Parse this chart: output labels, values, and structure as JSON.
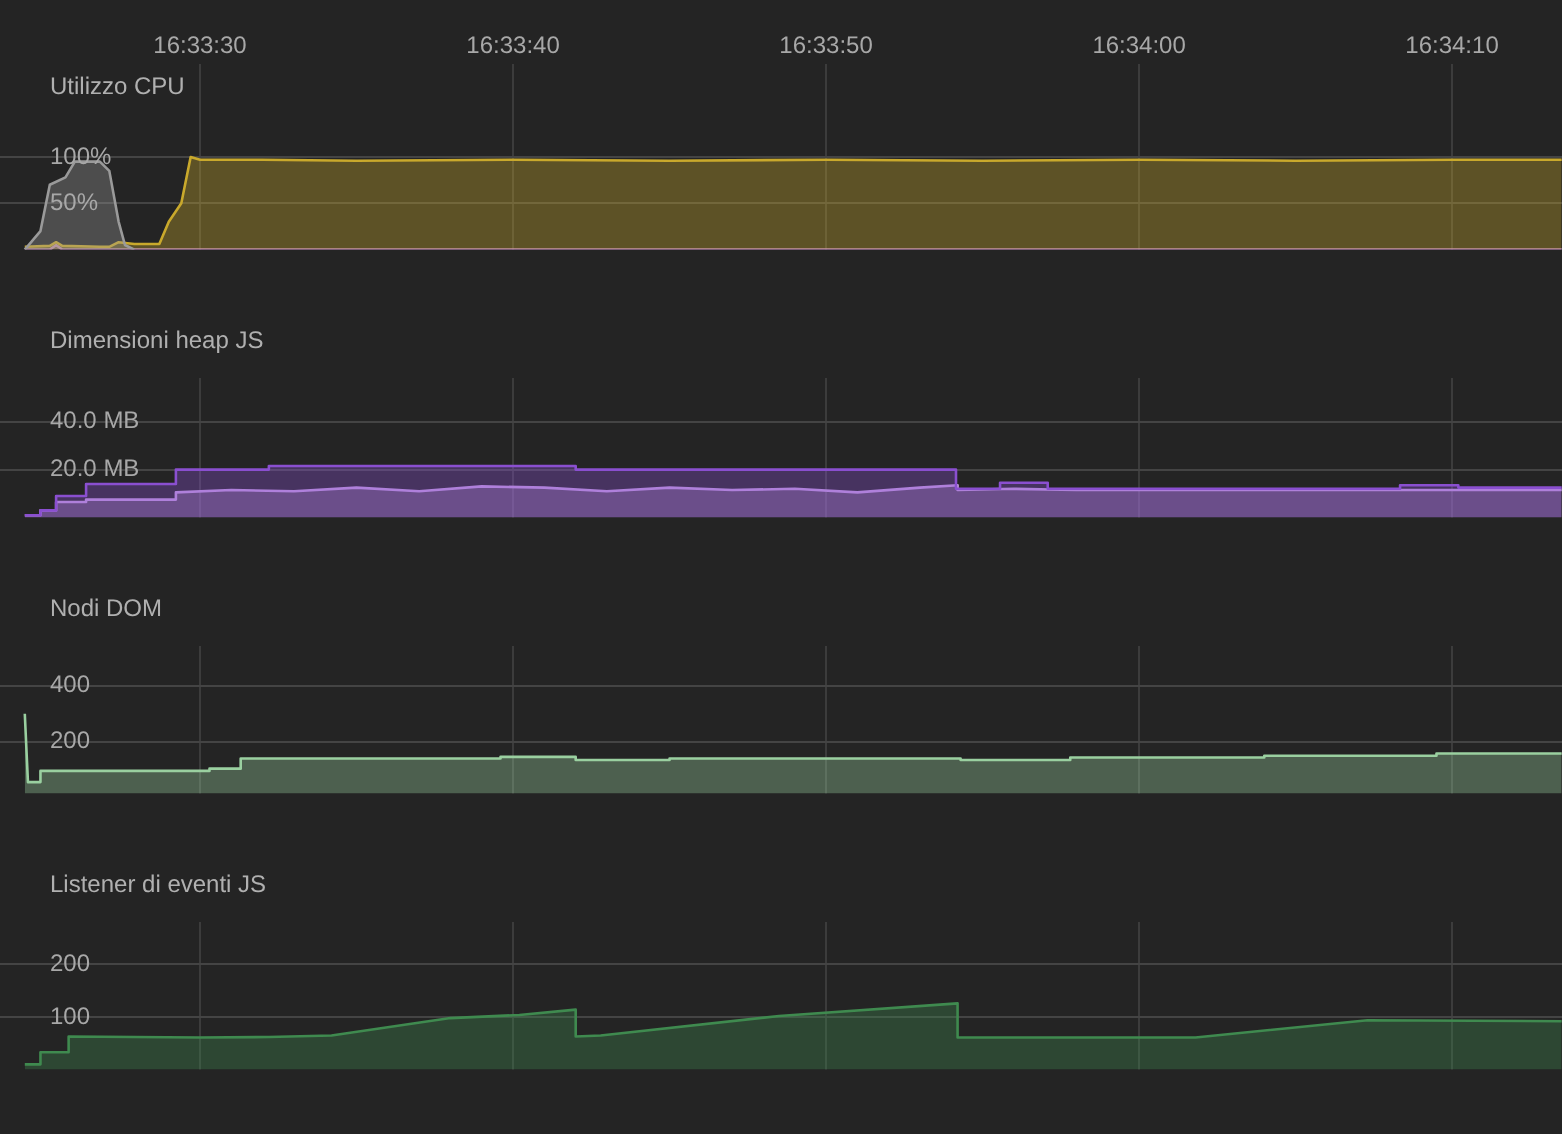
{
  "chart_data": [
    {
      "type": "area",
      "title": "Utilizzo CPU",
      "xlim": [
        16.556558,
        16.57042
      ],
      "xticks": [
        {
          "value": 16.558333,
          "label": "16:33:30"
        },
        {
          "value": 16.561111,
          "label": "16:33:40"
        },
        {
          "value": 16.563889,
          "label": "16:33:50"
        },
        {
          "value": 16.566667,
          "label": "16:34:00"
        },
        {
          "value": 16.569444,
          "label": "16:34:10"
        }
      ],
      "ylim": [
        0,
        200
      ],
      "yticks": [
        {
          "value": 50,
          "label": "50%"
        },
        {
          "value": 100,
          "label": "100%"
        }
      ],
      "grid": true,
      "series": [
        {
          "color": "#9a9a9a",
          "x": [
            16.556778,
            16.556917,
            16.557,
            16.557139,
            16.557222,
            16.557444,
            16.557528,
            16.557611,
            16.557667,
            16.55775
          ],
          "values": [
            0,
            20,
            70,
            78,
            95,
            95,
            85,
            30,
            5,
            0
          ]
        },
        {
          "color": "#c9a92c",
          "x": [
            16.556778,
            16.557,
            16.557056,
            16.557111,
            16.557444,
            16.557528,
            16.557611,
            16.55775,
            16.557972,
            16.558056,
            16.558167,
            16.55825,
            16.558333,
            16.558889,
            16.559722,
            16.561111,
            16.5625,
            16.563889,
            16.565278,
            16.566667,
            16.568056,
            16.569444,
            16.570417
          ],
          "values": [
            3,
            4,
            8,
            4,
            3,
            3,
            8,
            6,
            6,
            30,
            50,
            100,
            97,
            97,
            96,
            97,
            96,
            97,
            96,
            97,
            96,
            97,
            97
          ]
        },
        {
          "color": "#c58ae0",
          "x": [
            16.556778,
            16.557,
            16.557056,
            16.557111,
            16.570417
          ],
          "values": [
            0,
            0,
            5,
            0,
            0
          ]
        }
      ]
    },
    {
      "type": "area",
      "title": "Dimensioni heap JS",
      "xlim": [
        16.556558,
        16.57042
      ],
      "xticks": [
        16.558333,
        16.561111,
        16.563889,
        16.566667,
        16.569444
      ],
      "ylim": [
        0,
        58
      ],
      "yticks": [
        {
          "value": 20,
          "label": "20.0 MB"
        },
        {
          "value": 40,
          "label": "40.0 MB"
        }
      ],
      "grid": true,
      "tick_labels": "y",
      "series": [
        {
          "color": "#8a4fd0",
          "x": [
            16.556778,
            16.556917,
            16.556917,
            16.557056,
            16.557056,
            16.557322,
            16.557322,
            16.558119,
            16.558119,
            16.558944,
            16.558944,
            16.561667,
            16.561667,
            16.565042,
            16.565042,
            16.565433,
            16.565433,
            16.565856,
            16.565856,
            16.568983,
            16.568983,
            16.5695,
            16.5695,
            16.570417
          ],
          "values": [
            1,
            1,
            3,
            3,
            9,
            9,
            14,
            14,
            20,
            20,
            21.5,
            21.5,
            20,
            20,
            12,
            12,
            14.5,
            14.5,
            12,
            12,
            13.5,
            13.5,
            12.5,
            12.5
          ]
        },
        {
          "color": "#c39ae0",
          "x": [
            16.556778,
            16.556917,
            16.556917,
            16.557056,
            16.557056,
            16.557322,
            16.557322,
            16.558119,
            16.558119,
            16.558611,
            16.559167,
            16.559722,
            16.560278,
            16.560833,
            16.561389,
            16.561944,
            16.5625,
            16.563056,
            16.563611,
            16.564167,
            16.564722,
            16.565056,
            16.565056,
            16.565556,
            16.566111,
            16.566667,
            16.568056,
            16.569444,
            16.570417
          ],
          "values": [
            1,
            1,
            3,
            3,
            6.5,
            6.5,
            7.5,
            7.5,
            10.5,
            11.5,
            11,
            12.5,
            11,
            13,
            12.5,
            11,
            12.5,
            11.5,
            12,
            10.5,
            12.5,
            13.5,
            11.5,
            12,
            11.5,
            11.5,
            11.5,
            11.5,
            11.5
          ]
        }
      ]
    },
    {
      "type": "area",
      "title": "Nodi DOM",
      "xlim": [
        16.556558,
        16.57042
      ],
      "xticks": [
        16.558333,
        16.561111,
        16.563889,
        16.566667,
        16.569444
      ],
      "ylim": [
        15,
        540
      ],
      "yticks": [
        200,
        400
      ],
      "grid": true,
      "tick_labels": "y",
      "series": [
        {
          "color": "#9ad0a0",
          "x": [
            16.556778,
            16.556806,
            16.556917,
            16.556917,
            16.558417,
            16.558417,
            16.558694,
            16.558694,
            16.561,
            16.561,
            16.561667,
            16.561667,
            16.5625,
            16.5625,
            16.565083,
            16.565083,
            16.566056,
            16.566056,
            16.567778,
            16.567778,
            16.569306,
            16.569306,
            16.570417
          ],
          "values": [
            300,
            56,
            56,
            96,
            96,
            104,
            104,
            140,
            140,
            146,
            146,
            135,
            135,
            140,
            140,
            135,
            135,
            144,
            144,
            150,
            150,
            158,
            158
          ]
        }
      ]
    },
    {
      "type": "area",
      "title": "Listener di eventi JS",
      "xlim": [
        16.556558,
        16.57042
      ],
      "xticks": [
        16.558333,
        16.561111,
        16.563889,
        16.566667,
        16.569444
      ],
      "ylim": [
        0,
        280
      ],
      "yticks": [
        100,
        200
      ],
      "grid": true,
      "tick_labels": "y",
      "series": [
        {
          "color": "#3f8a4f",
          "x": [
            16.556778,
            16.556917,
            16.556917,
            16.557167,
            16.557167,
            16.558333,
            16.558944,
            16.5595,
            16.560556,
            16.561167,
            16.561667,
            16.561667,
            16.561889,
            16.563472,
            16.565056,
            16.565056,
            16.567167,
            16.568694,
            16.570417
          ],
          "values": [
            10,
            10,
            33,
            33,
            63,
            61,
            62,
            65,
            98,
            104,
            114,
            63,
            65,
            102,
            126,
            61,
            61,
            94,
            92
          ]
        }
      ]
    }
  ]
}
